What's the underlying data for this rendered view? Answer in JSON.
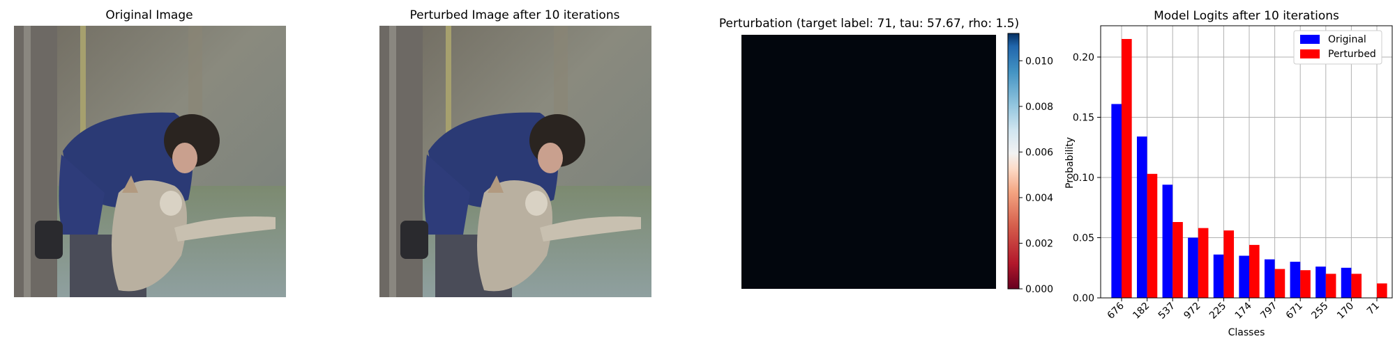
{
  "panels": {
    "original": {
      "title": "Original Image"
    },
    "perturbed": {
      "title": "Perturbed Image after 10 iterations"
    },
    "perturbation": {
      "title": "Perturbation (target label: 71, tau: 57.67, rho: 1.5)",
      "colorbar_ticks": [
        "0.000",
        "0.002",
        "0.004",
        "0.006",
        "0.008",
        "0.010"
      ],
      "colorbar_range": [
        0,
        0.0112
      ],
      "colormap": "RdBu",
      "fill_color": "#02060d"
    }
  },
  "chart_data": {
    "type": "bar",
    "title": "Model Logits after 10 iterations",
    "xlabel": "Classes",
    "ylabel": "Probability",
    "categories": [
      "676",
      "182",
      "537",
      "972",
      "225",
      "174",
      "797",
      "671",
      "255",
      "170",
      "71"
    ],
    "series": [
      {
        "name": "Original",
        "color": "#0000ff",
        "values": [
          0.161,
          0.134,
          0.094,
          0.05,
          0.036,
          0.035,
          0.032,
          0.03,
          0.026,
          0.025,
          0.0
        ]
      },
      {
        "name": "Perturbed",
        "color": "#ff0000",
        "values": [
          0.215,
          0.103,
          0.063,
          0.058,
          0.056,
          0.044,
          0.024,
          0.023,
          0.02,
          0.02,
          0.012
        ]
      }
    ],
    "ylim": [
      0,
      0.226
    ],
    "yticks": [
      0.0,
      0.05,
      0.1,
      0.15,
      0.2
    ],
    "ytick_labels": [
      "0.00",
      "0.05",
      "0.10",
      "0.15",
      "0.20"
    ],
    "grid": true,
    "legend": "top-right"
  }
}
